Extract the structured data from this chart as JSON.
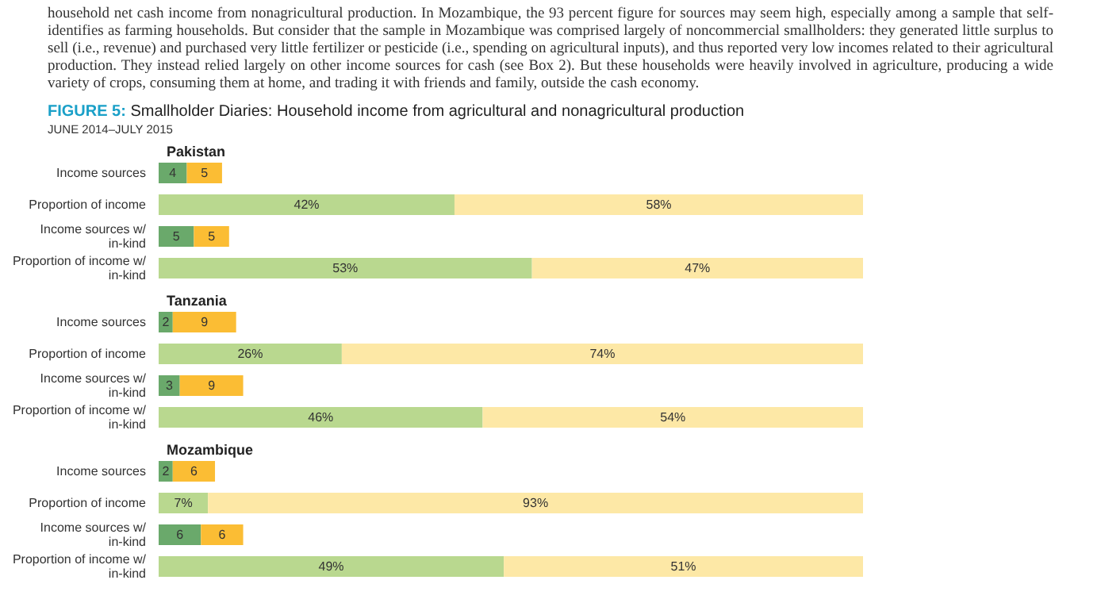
{
  "chart_data": [
    {
      "type": "bar",
      "orientation": "horizontal",
      "stacked": true,
      "title": "FIGURE 5: Smallholder Diaries: Household income from agricultural and nonagricultural production",
      "subtitle": "JUNE 2014–JULY 2015",
      "annotations": [
        "household net cash income from nonagricultural production. In Mozambique, the 93 percent figure for sources may seem high, especially among a sample that self-identifies as farming households. But consider that the sample in Mozambique was comprised largely of noncommercial smallholders: they generated little surplus to sell (i.e., revenue) and purchased very little fertilizer or pesticide (i.e., spending on agricultural inputs), and thus reported very low incomes related to their agricultural production. They instead relied largely on other income sources for cash (see Box 2). But these households were heavily involved in agriculture, producing a wide variety of crops, consuming them at home, and trading it with friends and family, outside the cash economy.",
        "Pakistan"
      ],
      "categories": [
        "Income sources",
        "Proportion of income",
        "Income sources w/in-kind",
        "Proportion of income w/in-kind"
      ],
      "tick_labels": "y",
      "series": [
        {
          "color": "#6aa96b",
          "values": [
            4,
            null,
            5,
            null
          ],
          "value_labels": [
            "4",
            null,
            "5",
            null
          ]
        },
        {
          "color": "#fbbd34",
          "values": [
            5,
            null,
            5,
            null
          ],
          "value_labels": [
            "5",
            null,
            "5",
            null
          ]
        },
        {
          "color": "#b9d88f",
          "values": [
            null,
            42,
            null,
            53
          ],
          "value_labels": [
            null,
            "42%",
            null,
            "53%"
          ]
        },
        {
          "color": "#fde8a6",
          "values": [
            null,
            58,
            null,
            47
          ],
          "value_labels": [
            null,
            "58%",
            null,
            "47%"
          ]
        }
      ]
    },
    {
      "type": "bar",
      "orientation": "horizontal",
      "stacked": true,
      "annotations": [
        "Tanzania"
      ],
      "categories": [
        "Income sources",
        "Proportion of income",
        "Income sources w/in-kind",
        "Proportion of income w/in-kind"
      ],
      "tick_labels": "y",
      "series": [
        {
          "color": "#6aa96b",
          "values": [
            2,
            null,
            3,
            null
          ],
          "value_labels": [
            "2",
            null,
            "3",
            null
          ]
        },
        {
          "color": "#fbbd34",
          "values": [
            9,
            null,
            9,
            null
          ],
          "value_labels": [
            "9",
            null,
            "9",
            null
          ]
        },
        {
          "color": "#b9d88f",
          "values": [
            null,
            26,
            null,
            46
          ],
          "value_labels": [
            null,
            "26%",
            null,
            "46%"
          ]
        },
        {
          "color": "#fde8a6",
          "values": [
            null,
            74,
            null,
            54
          ],
          "value_labels": [
            null,
            "74%",
            null,
            "54%"
          ]
        }
      ]
    },
    {
      "type": "bar",
      "orientation": "horizontal",
      "stacked": true,
      "annotations": [
        "Mozambique"
      ],
      "categories": [
        "Income sources",
        "Proportion of income",
        "Income sources w/in-kind",
        "Proportion of income w/in-kind"
      ],
      "tick_labels": "y",
      "series": [
        {
          "color": "#6aa96b",
          "values": [
            2,
            null,
            6,
            null
          ],
          "value_labels": [
            "2",
            null,
            "6",
            null
          ]
        },
        {
          "color": "#fbbd34",
          "values": [
            6,
            null,
            6,
            null
          ],
          "value_labels": [
            "6",
            null,
            "6",
            null
          ]
        },
        {
          "color": "#b9d88f",
          "values": [
            null,
            7,
            null,
            49
          ],
          "value_labels": [
            null,
            "7%",
            null,
            "49%"
          ]
        },
        {
          "color": "#fde8a6",
          "values": [
            null,
            93,
            null,
            51
          ],
          "value_labels": [
            null,
            "93%",
            null,
            "51%"
          ]
        }
      ]
    }
  ]
}
